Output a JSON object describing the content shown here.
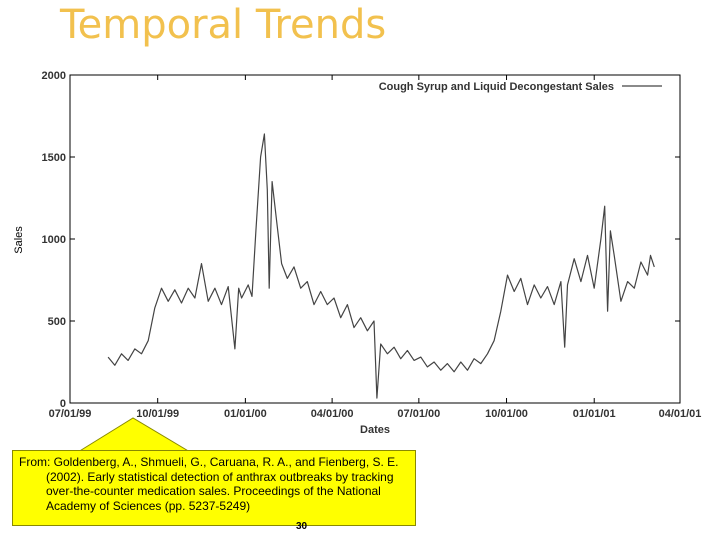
{
  "slide": {
    "title": "Temporal Trends",
    "page_number": "30"
  },
  "citation": {
    "line1": "From: Goldenberg, A., Shmueli, G., Caruana, R. A., and Fienberg, S. E.",
    "line2": "(2002). Early statistical detection of anthrax outbreaks by tracking",
    "line3": "over-the-counter medication sales. Proceedings of the National",
    "line4": "Academy of Sciences (pp. 5237-5249)"
  },
  "colors": {
    "title": "#f2c14e",
    "callout": "#ffff00",
    "line": "#444444"
  },
  "chart_data": {
    "type": "line",
    "xlabel": "Dates",
    "ylabel": "Sales",
    "ylim": [
      0,
      2000
    ],
    "yticks": [
      0,
      500,
      1000,
      1500,
      2000
    ],
    "xlim": [
      "1999-07-01",
      "2001-04-01"
    ],
    "xticks": [
      "07/01/99",
      "10/01/99",
      "01/01/00",
      "04/01/00",
      "07/01/00",
      "10/01/00",
      "01/01/01",
      "04/01/01"
    ],
    "legend": {
      "position": "top-right"
    },
    "grid": false,
    "series": [
      {
        "name": "Cough Syrup and Liquid Decongestant Sales",
        "points": [
          [
            "1999-08-10",
            280
          ],
          [
            "1999-08-17",
            230
          ],
          [
            "1999-08-24",
            300
          ],
          [
            "1999-08-31",
            260
          ],
          [
            "1999-09-07",
            330
          ],
          [
            "1999-09-14",
            300
          ],
          [
            "1999-09-21",
            380
          ],
          [
            "1999-09-28",
            580
          ],
          [
            "1999-10-05",
            700
          ],
          [
            "1999-10-12",
            620
          ],
          [
            "1999-10-19",
            690
          ],
          [
            "1999-10-26",
            610
          ],
          [
            "1999-11-02",
            700
          ],
          [
            "1999-11-09",
            640
          ],
          [
            "1999-11-16",
            850
          ],
          [
            "1999-11-23",
            620
          ],
          [
            "1999-11-30",
            700
          ],
          [
            "1999-12-07",
            600
          ],
          [
            "1999-12-14",
            710
          ],
          [
            "1999-12-21",
            330
          ],
          [
            "1999-12-25",
            700
          ],
          [
            "1999-12-28",
            640
          ],
          [
            "2000-01-04",
            720
          ],
          [
            "2000-01-08",
            650
          ],
          [
            "2000-01-12",
            1050
          ],
          [
            "2000-01-17",
            1500
          ],
          [
            "2000-01-21",
            1640
          ],
          [
            "2000-01-24",
            1300
          ],
          [
            "2000-01-26",
            700
          ],
          [
            "2000-01-29",
            1350
          ],
          [
            "2000-02-03",
            1100
          ],
          [
            "2000-02-08",
            850
          ],
          [
            "2000-02-14",
            760
          ],
          [
            "2000-02-21",
            830
          ],
          [
            "2000-02-28",
            700
          ],
          [
            "2000-03-06",
            740
          ],
          [
            "2000-03-13",
            600
          ],
          [
            "2000-03-20",
            680
          ],
          [
            "2000-03-27",
            600
          ],
          [
            "2000-04-03",
            640
          ],
          [
            "2000-04-10",
            520
          ],
          [
            "2000-04-17",
            600
          ],
          [
            "2000-04-24",
            460
          ],
          [
            "2000-05-01",
            520
          ],
          [
            "2000-05-08",
            440
          ],
          [
            "2000-05-15",
            500
          ],
          [
            "2000-05-18",
            30
          ],
          [
            "2000-05-22",
            360
          ],
          [
            "2000-05-29",
            300
          ],
          [
            "2000-06-05",
            340
          ],
          [
            "2000-06-12",
            270
          ],
          [
            "2000-06-19",
            320
          ],
          [
            "2000-06-26",
            260
          ],
          [
            "2000-07-03",
            280
          ],
          [
            "2000-07-10",
            220
          ],
          [
            "2000-07-17",
            250
          ],
          [
            "2000-07-24",
            200
          ],
          [
            "2000-07-31",
            240
          ],
          [
            "2000-08-07",
            190
          ],
          [
            "2000-08-14",
            250
          ],
          [
            "2000-08-21",
            200
          ],
          [
            "2000-08-28",
            270
          ],
          [
            "2000-09-04",
            240
          ],
          [
            "2000-09-11",
            300
          ],
          [
            "2000-09-18",
            380
          ],
          [
            "2000-09-25",
            560
          ],
          [
            "2000-10-02",
            780
          ],
          [
            "2000-10-09",
            680
          ],
          [
            "2000-10-16",
            760
          ],
          [
            "2000-10-23",
            600
          ],
          [
            "2000-10-30",
            720
          ],
          [
            "2000-11-06",
            640
          ],
          [
            "2000-11-13",
            710
          ],
          [
            "2000-11-20",
            600
          ],
          [
            "2000-11-27",
            740
          ],
          [
            "2000-12-01",
            340
          ],
          [
            "2000-12-04",
            720
          ],
          [
            "2000-12-11",
            880
          ],
          [
            "2000-12-18",
            740
          ],
          [
            "2000-12-25",
            900
          ],
          [
            "2001-01-01",
            700
          ],
          [
            "2001-01-08",
            1000
          ],
          [
            "2001-01-12",
            1200
          ],
          [
            "2001-01-15",
            560
          ],
          [
            "2001-01-18",
            1050
          ],
          [
            "2001-01-22",
            900
          ],
          [
            "2001-01-29",
            620
          ],
          [
            "2001-02-05",
            740
          ],
          [
            "2001-02-12",
            700
          ],
          [
            "2001-02-19",
            860
          ],
          [
            "2001-02-26",
            780
          ],
          [
            "2001-03-01",
            900
          ],
          [
            "2001-03-05",
            830
          ]
        ]
      }
    ]
  }
}
